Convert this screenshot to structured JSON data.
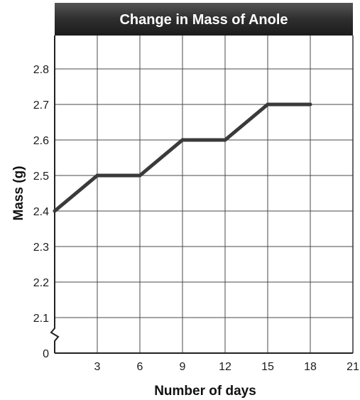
{
  "chart_data": {
    "type": "line",
    "title": "Change in Mass of Anole",
    "xlabel": "Number of days",
    "ylabel": "Mass (g)",
    "x_ticks": [
      3,
      6,
      9,
      12,
      15,
      18,
      21
    ],
    "y_ticks": [
      2.1,
      2.2,
      2.3,
      2.4,
      2.5,
      2.6,
      2.7,
      2.8
    ],
    "y_zero_label": "0",
    "xlim": [
      0,
      21
    ],
    "ylim": [
      2.0,
      2.9
    ],
    "y_axis_break": true,
    "grid": true,
    "series": [
      {
        "x": [
          0,
          3,
          6,
          9,
          12,
          15,
          18
        ],
        "y": [
          2.4,
          2.5,
          2.5,
          2.6,
          2.6,
          2.7,
          2.7
        ]
      }
    ],
    "colors": {
      "line": "#3a3a3a",
      "grid": "#4a4a4a",
      "title_bar": "#2b2b2b",
      "title_text": "#ffffff"
    }
  }
}
